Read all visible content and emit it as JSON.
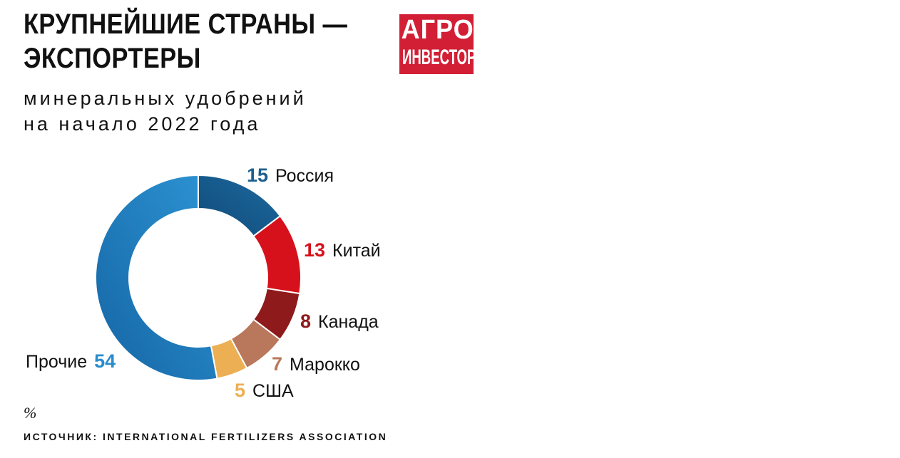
{
  "header": {
    "title_line1": "КРУПНЕЙШИЕ СТРАНЫ —",
    "title_line2": "ЭКСПОРТЕРЫ",
    "subtitle_line1": "минеральных удобрений",
    "subtitle_line2": "на начало 2022 года"
  },
  "logo": {
    "line1": "АГРО",
    "line2": "ИНВЕСТОР",
    "color": "#d21f35"
  },
  "footer": {
    "unit": "%",
    "source": "ИСТОЧНИК: INTERNATIONAL FERTILIZERS ASSOCIATION"
  },
  "chart_data": {
    "type": "pie",
    "donut": true,
    "unit": "%",
    "slices": [
      {
        "label": "Россия",
        "value": 15,
        "color": "#1d5f8f",
        "gradient": [
          "#0f4a78",
          "#1e6aa0"
        ]
      },
      {
        "label": "Китай",
        "value": 13,
        "color": "#d6111b"
      },
      {
        "label": "Канада",
        "value": 8,
        "color": "#8e1a1b"
      },
      {
        "label": "Марокко",
        "value": 7,
        "color": "#b9775b"
      },
      {
        "label": "США",
        "value": 5,
        "color": "#edaf54"
      },
      {
        "label": "Прочие",
        "value": 54,
        "color": "#2a8ccc",
        "gradient": [
          "#1565a4",
          "#2d94d4"
        ]
      }
    ]
  }
}
